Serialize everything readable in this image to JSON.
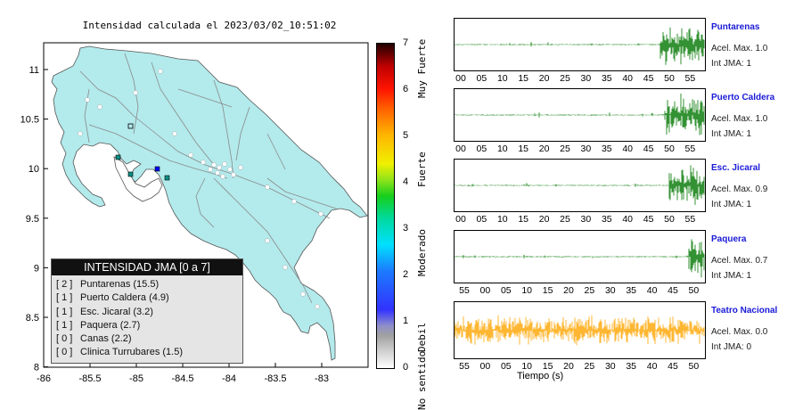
{
  "map": {
    "title": "Intensidad calculada el 2023/03/02_10:51:02",
    "x_ticks": [
      "-86",
      "-85.5",
      "-85",
      "-84.5",
      "-84",
      "-83.5",
      "-83"
    ],
    "y_ticks": [
      "11",
      "10.5",
      "10",
      "9.5",
      "9",
      "8.5",
      "8"
    ],
    "land_color": "#b3eaec",
    "ocean_color": "#ffffff"
  },
  "legend": {
    "title": "INTENSIDAD JMA [0 a 7]",
    "items": [
      {
        "int": "[ 2 ]",
        "label": "Puntarenas (15.5)"
      },
      {
        "int": "[ 1 ]",
        "label": "Puerto Caldera (4.9)"
      },
      {
        "int": "[ 1 ]",
        "label": "Esc. Jicaral (3.2)"
      },
      {
        "int": "[ 1 ]",
        "label": "Paquera (2.7)"
      },
      {
        "int": "[ 0 ]",
        "label": "Canas (2.2)"
      },
      {
        "int": "[ 0 ]",
        "label": "Clinica Turrubares (1.5)"
      }
    ]
  },
  "colorbar": {
    "ticks": [
      "7",
      "6",
      "5",
      "4",
      "3",
      "2",
      "1",
      "0"
    ],
    "labels": [
      "Muy Fuerte",
      "Fuerte",
      "Moderado",
      "Debil",
      "No sentido"
    ]
  },
  "stations": [
    {
      "name": "Puntarenas",
      "acel": "Acel. Max. 1.0",
      "int": "Int JMA: 1",
      "color": "#007700",
      "ticks": [
        "00",
        "05",
        "10",
        "15",
        "20",
        "25",
        "30",
        "35",
        "40",
        "45",
        "50",
        "55"
      ]
    },
    {
      "name": "Puerto Caldera",
      "acel": "Acel. Max. 1.0",
      "int": "Int JMA: 1",
      "color": "#007700",
      "ticks": [
        "00",
        "05",
        "10",
        "15",
        "20",
        "25",
        "30",
        "35",
        "40",
        "45",
        "50",
        "55"
      ]
    },
    {
      "name": "Esc. Jicaral",
      "acel": "Acel. Max. 0.9",
      "int": "Int JMA: 1",
      "color": "#007700",
      "ticks": [
        "00",
        "05",
        "10",
        "15",
        "20",
        "25",
        "30",
        "35",
        "40",
        "45",
        "50",
        "55"
      ]
    },
    {
      "name": "Paquera",
      "acel": "Acel. Max. 0.7",
      "int": "Int JMA: 1",
      "color": "#007700",
      "ticks": [
        "55",
        "00",
        "05",
        "10",
        "15",
        "20",
        "25",
        "30",
        "35",
        "40",
        "45",
        "50"
      ]
    },
    {
      "name": "Teatro Nacional",
      "acel": "Acel. Max. 0.0",
      "int": "Int JMA: 0",
      "color": "#ffa500",
      "ticks": [
        "55",
        "00",
        "05",
        "10",
        "15",
        "20",
        "25",
        "30",
        "35",
        "40",
        "45",
        "50"
      ]
    }
  ],
  "xlabel": "Tiempo (s)"
}
